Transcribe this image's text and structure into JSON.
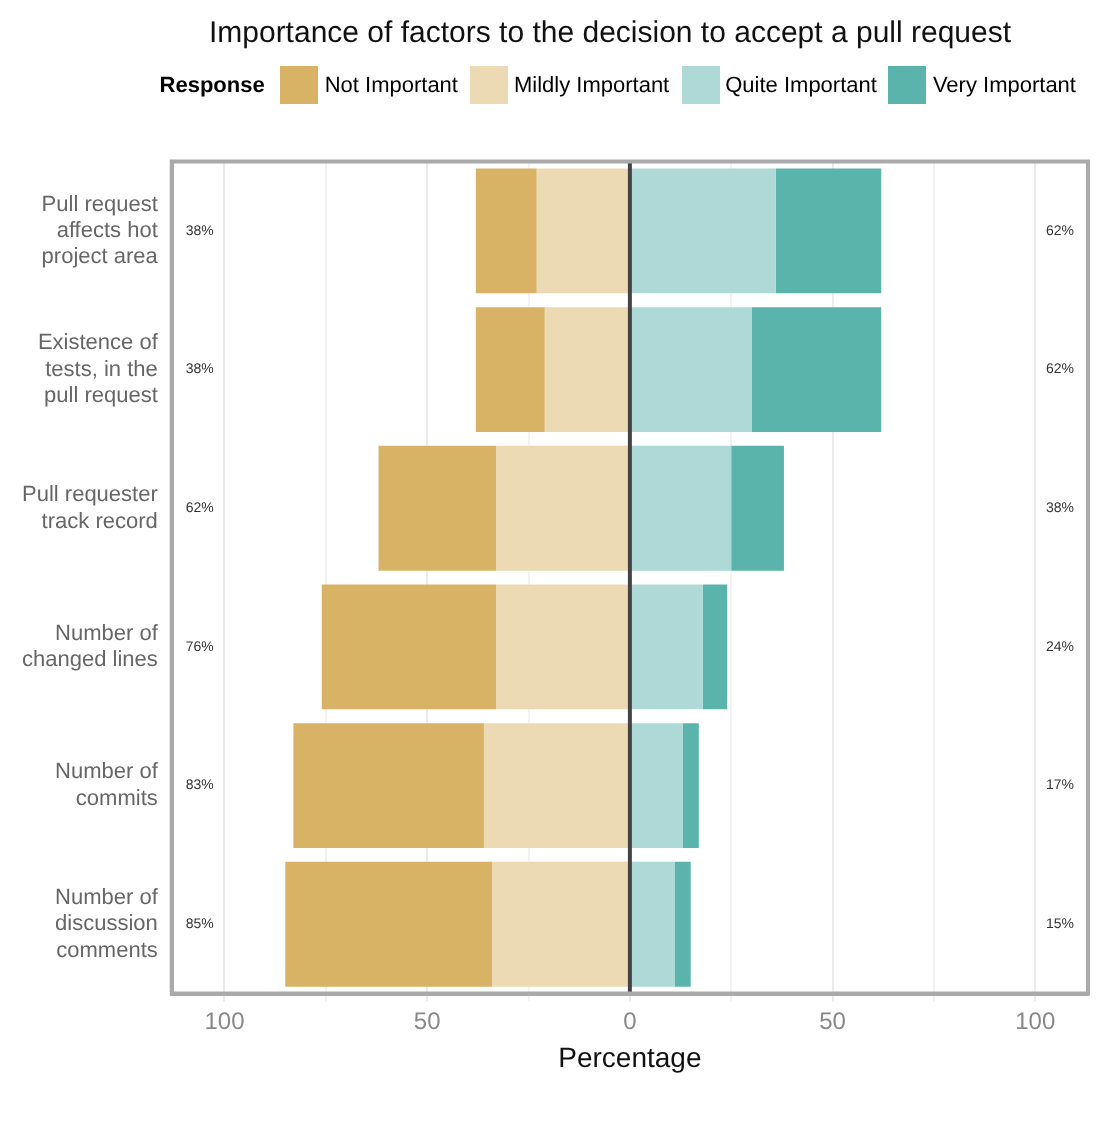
{
  "chart_data": {
    "type": "bar",
    "orientation": "horizontal",
    "title": "Importance of factors to the decision to accept a pull request",
    "legend_title": "Response",
    "legend": "top",
    "xlabel": "Percentage",
    "categories": [
      "Pull request affects hot project area",
      "Existence of tests, in the pull request",
      "Pull requester track record",
      "Number of changed lines",
      "Number of commits",
      "Number of discussion comments"
    ],
    "series": [
      {
        "name": "Not Important",
        "color": "#d8b365",
        "values": [
          15,
          17,
          29,
          43,
          47,
          51
        ],
        "base": [
          -38,
          -38,
          -62,
          -76,
          -83,
          -85
        ]
      },
      {
        "name": "Mildly Important",
        "color": "#ebdab3",
        "values": [
          23,
          21,
          33,
          33,
          36,
          34
        ],
        "base": [
          -23,
          -21,
          -33,
          -33,
          -36,
          -34
        ]
      },
      {
        "name": "Quite Important",
        "color": "#aed9d6",
        "values": [
          36,
          30,
          25,
          18,
          13,
          11
        ],
        "base": [
          0,
          0,
          0,
          0,
          0,
          0
        ]
      },
      {
        "name": "Very Important",
        "color": "#5ab4ac",
        "values": [
          26,
          32,
          13,
          6,
          4,
          4
        ],
        "base": [
          36,
          30,
          25,
          18,
          13,
          11
        ]
      }
    ],
    "xlim": [
      -113,
      113
    ],
    "xticks": [
      {
        "value": -100,
        "label": "100"
      },
      {
        "value": -75,
        "label": null
      },
      {
        "value": -50,
        "label": "50"
      },
      {
        "value": -25,
        "label": null
      },
      0,
      {
        "value": 25,
        "label": null
      },
      {
        "value": 50,
        "label": "50"
      },
      {
        "value": 75,
        "label": null
      },
      {
        "value": 100,
        "label": "100"
      }
    ],
    "grid": "x",
    "ref_lines": [
      {
        "axis": "x",
        "value": 0,
        "color": "#444444"
      }
    ],
    "annotations": [
      "38%",
      "62%",
      "38%",
      "62%",
      "62%",
      "38%",
      "76%",
      "24%",
      "83%",
      "17%",
      "85%",
      "15%"
    ]
  }
}
